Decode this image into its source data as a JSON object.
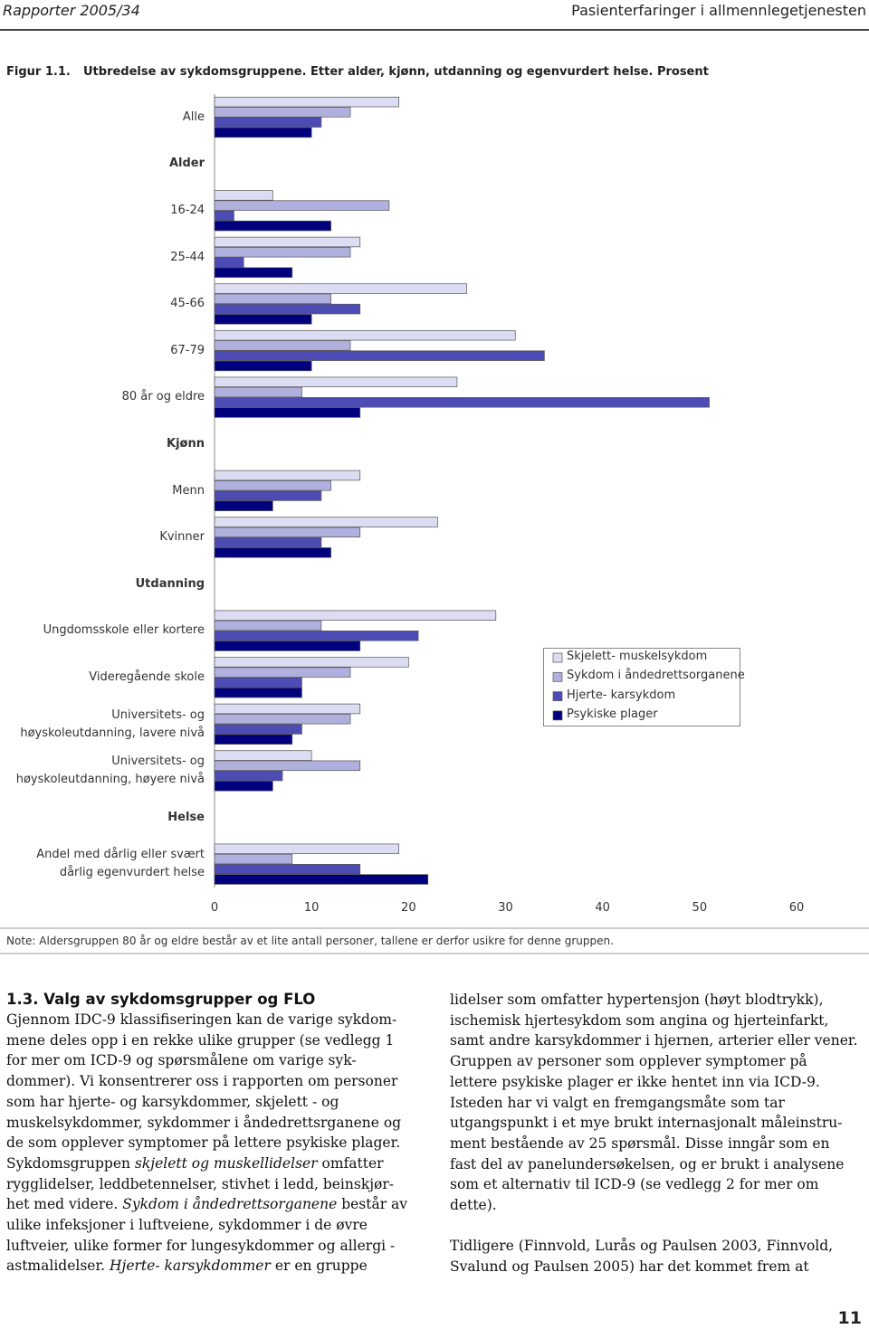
{
  "header": {
    "left": "Rapporter 2005/34",
    "right": "Pasienterfaringer i allmennlegetjenesten"
  },
  "figure": {
    "label": "Figur 1.1.",
    "caption": "Utbredelse av sykdomsgruppene. Etter alder, kjønn, utdanning og egenvurdert helse. Prosent"
  },
  "chart_data": {
    "type": "bar",
    "orientation": "horizontal",
    "categories": [
      "Alle",
      "Alder",
      "16-24",
      "25-44",
      "45-66",
      "67-79",
      "80 år og eldre",
      "Kjønn",
      "Menn",
      "Kvinner",
      "Utdanning",
      "Ungdomsskole eller kortere",
      "Videregående skole",
      "Universitets- og høyskoleutdanning, lavere nivå",
      "Universitets- og høyskoleutdanning, høyere nivå",
      "Helse",
      "Andel med dårlig eller svært dårlig egenvurdert helse"
    ],
    "series": [
      {
        "name": "Skjelett- muskelsykdom",
        "color": "#dcdcf2",
        "values": [
          19,
          null,
          6,
          15,
          26,
          31,
          25,
          null,
          15,
          23,
          null,
          29,
          20,
          15,
          10,
          null,
          19
        ]
      },
      {
        "name": "Sykdom i åndedrettsorganene",
        "color": "#b0b0de",
        "values": [
          14,
          null,
          18,
          14,
          12,
          14,
          9,
          null,
          12,
          15,
          null,
          11,
          14,
          14,
          15,
          null,
          8
        ]
      },
      {
        "name": "Hjerte- karsykdom",
        "color": "#4c4cb4",
        "values": [
          11,
          null,
          2,
          3,
          15,
          34,
          51,
          null,
          11,
          11,
          null,
          21,
          9,
          9,
          7,
          null,
          15
        ]
      },
      {
        "name": "Psykiske plager",
        "color": "#00007f",
        "values": [
          10,
          null,
          12,
          8,
          10,
          10,
          15,
          null,
          6,
          12,
          null,
          15,
          9,
          8,
          6,
          null,
          22
        ]
      }
    ],
    "xlim": [
      0,
      60
    ],
    "xticks": [
      0,
      10,
      20,
      30,
      40,
      50,
      60
    ],
    "legend": "right"
  },
  "note": "Note: Aldersgruppen 80 år og eldre består av et lite antall personer, tallene er derfor usikre for denne gruppen.",
  "section": {
    "heading": "1.3. Valg av sykdomsgrupper og FLO",
    "columns": [
      [
        [
          [
            "Gjennom IDC-9 klassifiseringen kan de varige sykdom-"
          ],
          [
            "mene deles opp i en rekke ulike grupper (se vedlegg 1"
          ],
          [
            "for mer om ICD-9 og spørsmålene om varige syk-"
          ],
          [
            "dommer). Vi konsentrerer oss i rapporten om personer"
          ],
          [
            "som har hjerte- og karsykdommer, skjelett - og"
          ],
          [
            "muskelsykdommer, sykdommer i åndedrettsrganene og"
          ],
          [
            "de som opplever symptomer på lettere psykiske plager."
          ],
          [
            "Sykdomsgruppen ",
            {
              "italic": "skjelett og muskellidelser"
            },
            " omfatter"
          ],
          [
            "rygglidelser, leddbetennelser, stivhet i ledd, beinskjør-"
          ],
          [
            "het med videre. ",
            {
              "italic": "Sykdom i åndedrettsorganene"
            },
            " består av"
          ],
          [
            "ulike infeksjoner i luftveiene, sykdommer i de øvre"
          ],
          [
            "luftveier, ulike former for lungesykdommer og allergi -"
          ],
          [
            "astmalidelser. ",
            {
              "italic": "Hjerte- karsykdommer"
            },
            " er en gruppe"
          ]
        ]
      ],
      [
        [
          [
            "lidelser som omfatter hypertensjon (høyt blodtrykk),"
          ],
          [
            "ischemisk hjertesykdom som angina og hjerteinfarkt,"
          ],
          [
            "samt andre karsykdommer i hjernen, arterier eller vener."
          ],
          [
            "Gruppen av personer som opplever symptomer på"
          ],
          [
            "lettere psykiske plager er ikke hentet inn via ICD-9."
          ],
          [
            "Isteden har vi valgt en fremgangsmåte som tar"
          ],
          [
            "utgangspunkt i et mye brukt internasjonalt måleinstru-"
          ],
          [
            "ment bestående av 25 spørsmål. Disse inngår som en"
          ],
          [
            "fast del av panelundersøkelsen, og er brukt i analysene"
          ],
          [
            "som et alternativ til ICD-9 (se vedlegg 2 for mer om"
          ],
          [
            "dette)."
          ]
        ],
        [
          [
            "Tidligere (Finnvold, Lurås og Paulsen 2003, Finnvold,"
          ],
          [
            "Svalund og Paulsen 2005) har det kommet frem at"
          ]
        ]
      ]
    ]
  },
  "page_number": "11"
}
